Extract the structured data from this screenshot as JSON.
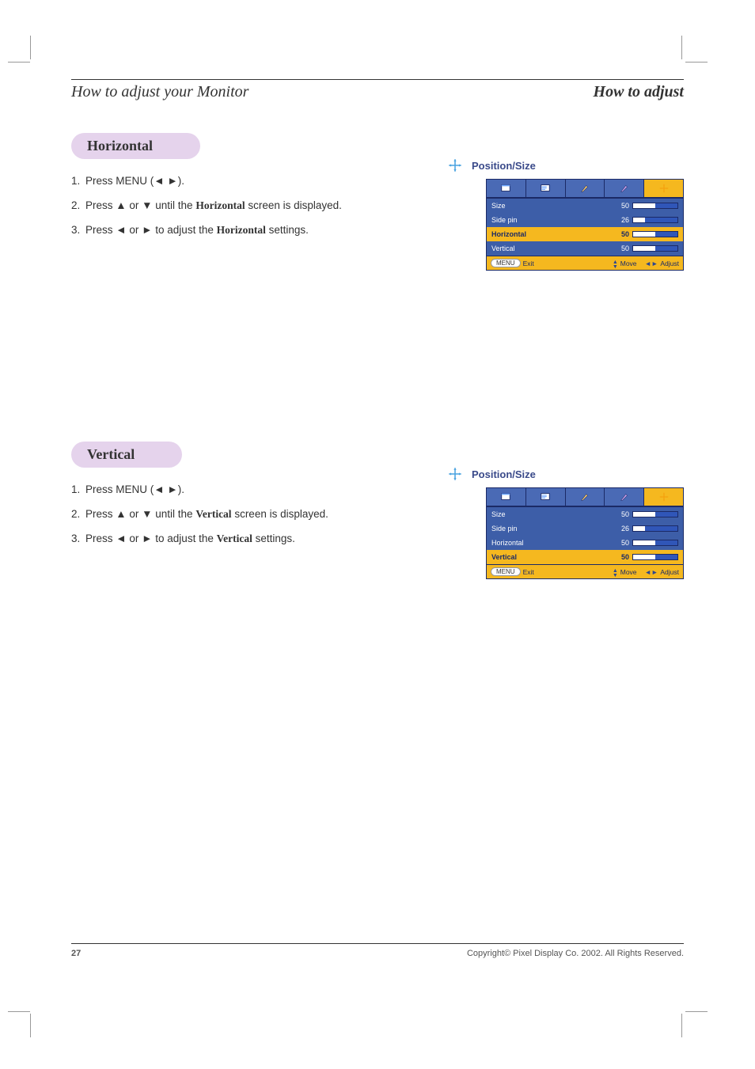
{
  "header": {
    "left": "How to adjust your Monitor",
    "right": "How to adjust"
  },
  "sections": [
    {
      "pill": "Horizontal",
      "steps": [
        {
          "n": "1.",
          "pre": "Press MENU (",
          "sym": "◄ ►",
          "post": ").",
          "tail": ""
        },
        {
          "n": "2.",
          "pre": "Press ",
          "sym": "▲ ▼",
          "mid": " or ",
          "post": " until the ",
          "bold": "Horizontal",
          "after": " screen is displayed."
        },
        {
          "n": "3.",
          "pre": "Press ",
          "sym": "◄ ►",
          "mid": " or ",
          "post": " to adjust the ",
          "bold": "Horizontal",
          "after": "  settings."
        }
      ],
      "osd": {
        "title": "Position/Size",
        "active_tab": 4,
        "rows": [
          {
            "label": "Size",
            "value": 50,
            "fill_pct": 50,
            "selected": false
          },
          {
            "label": "Side pin",
            "value": 26,
            "fill_pct": 26,
            "selected": false
          },
          {
            "label": "Horizontal",
            "value": 50,
            "fill_pct": 50,
            "selected": true
          },
          {
            "label": "Vertical",
            "value": 50,
            "fill_pct": 50,
            "selected": false
          }
        ],
        "footer": {
          "menu": "MENU",
          "exit": "Exit",
          "move": "Move",
          "adjust": "Adjust"
        }
      }
    },
    {
      "pill": "Vertical",
      "steps": [
        {
          "n": "1.",
          "pre": "Press MENU (",
          "sym": "◄ ►",
          "post": ").",
          "tail": ""
        },
        {
          "n": "2.",
          "pre": "Press ",
          "sym": "▲ ▼",
          "mid": " or ",
          "post": " until the ",
          "bold": "Vertical",
          "after": " screen is displayed."
        },
        {
          "n": "3.",
          "pre": "Press ",
          "sym": "◄ ►",
          "mid": " or ",
          "post": " to adjust the ",
          "bold": "Vertical",
          "after": "  settings."
        }
      ],
      "osd": {
        "title": "Position/Size",
        "active_tab": 4,
        "rows": [
          {
            "label": "Size",
            "value": 50,
            "fill_pct": 50,
            "selected": false
          },
          {
            "label": "Side pin",
            "value": 26,
            "fill_pct": 26,
            "selected": false
          },
          {
            "label": "Horizontal",
            "value": 50,
            "fill_pct": 50,
            "selected": false
          },
          {
            "label": "Vertical",
            "value": 50,
            "fill_pct": 50,
            "selected": true
          }
        ],
        "footer": {
          "menu": "MENU",
          "exit": "Exit",
          "move": "Move",
          "adjust": "Adjust"
        }
      }
    }
  ],
  "footer": {
    "page": "27",
    "copyright": "Copyright© Pixel Display Co. 2002. All Rights Reserved."
  },
  "colors": {
    "pill_bg": "#e5d3ec",
    "osd_bg": "#3d5ea8",
    "osd_accent": "#f5b81f",
    "osd_dark": "#1b2a66",
    "osd_track": "#3056b8",
    "osd_fill": "#ffffff",
    "title_blue": "#3a4a8a"
  }
}
